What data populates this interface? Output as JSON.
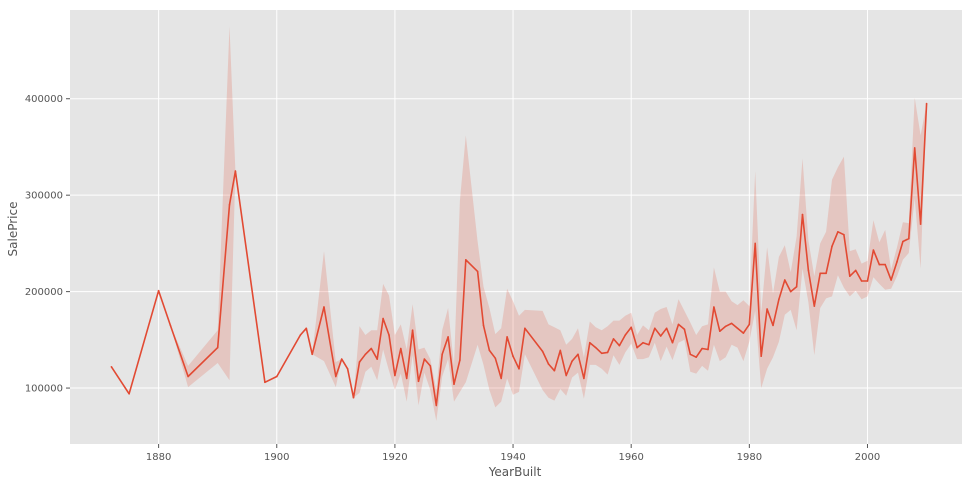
{
  "chart_data": {
    "type": "line",
    "title": "",
    "xlabel": "YearBuilt",
    "ylabel": "SalePrice",
    "xlim": [
      1865,
      2016
    ],
    "ylim": [
      42000,
      492000
    ],
    "xticks": [
      1880,
      1900,
      1920,
      1940,
      1960,
      1980,
      2000
    ],
    "yticks": [
      100000,
      200000,
      300000,
      400000
    ],
    "xtick_labels": [
      "1880",
      "1900",
      "1920",
      "1940",
      "1960",
      "1980",
      "2000"
    ],
    "ytick_labels": [
      "100000",
      "200000",
      "300000",
      "400000"
    ],
    "grid": true,
    "legend": "none",
    "colors": {
      "line": "#e24a33",
      "band": "#e24a33",
      "background": "#e5e5e5",
      "grid": "#ffffff"
    },
    "series": [
      {
        "x": [
          1872,
          1875,
          1880,
          1882,
          1885,
          1890,
          1892,
          1893,
          1898,
          1900,
          1904,
          1905,
          1906,
          1908,
          1910,
          1911,
          1912,
          1913,
          1914,
          1915,
          1916,
          1917,
          1918,
          1919,
          1920,
          1921,
          1922,
          1923,
          1924,
          1925,
          1926,
          1927,
          1928,
          1929,
          1930,
          1931,
          1932,
          1934,
          1935,
          1936,
          1937,
          1938,
          1939,
          1940,
          1941,
          1942,
          1945,
          1946,
          1947,
          1948,
          1949,
          1950,
          1951,
          1952,
          1953,
          1954,
          1955,
          1956,
          1957,
          1958,
          1959,
          1960,
          1961,
          1962,
          1963,
          1964,
          1965,
          1966,
          1967,
          1968,
          1969,
          1970,
          1971,
          1972,
          1973,
          1974,
          1975,
          1976,
          1977,
          1978,
          1979,
          1980,
          1981,
          1982,
          1983,
          1984,
          1985,
          1986,
          1987,
          1988,
          1989,
          1990,
          1991,
          1992,
          1993,
          1994,
          1995,
          1996,
          1997,
          1998,
          1999,
          2000,
          2001,
          2002,
          2003,
          2004,
          2005,
          2006,
          2007,
          2008,
          2009,
          2010
        ],
        "y": [
          122000,
          94000,
          201000,
          165000,
          112000,
          142000,
          290000,
          325000,
          106000,
          112000,
          155000,
          162000,
          135000,
          184000,
          112000,
          130000,
          120000,
          90000,
          127000,
          135000,
          141000,
          130000,
          172000,
          155000,
          113000,
          141000,
          110000,
          160000,
          107000,
          130000,
          123000,
          82000,
          135000,
          153000,
          104000,
          129000,
          233000,
          221000,
          165000,
          139000,
          131000,
          110000,
          153000,
          133000,
          120000,
          162000,
          138000,
          125000,
          118000,
          139000,
          113000,
          128000,
          135000,
          110000,
          147000,
          142000,
          136000,
          137000,
          151000,
          144000,
          155000,
          163000,
          142000,
          147000,
          145000,
          162000,
          154000,
          162000,
          147000,
          166000,
          161000,
          135000,
          132000,
          141000,
          140000,
          184000,
          159000,
          164000,
          167000,
          162000,
          157000,
          166000,
          250000,
          133000,
          182000,
          165000,
          192000,
          212000,
          200000,
          205000,
          280000,
          222000,
          185000,
          219000,
          219000,
          247000,
          262000,
          259000,
          216000,
          222000,
          211000,
          211000,
          243000,
          228000,
          228000,
          212000,
          231000,
          252000,
          255000,
          349000,
          270000,
          395000
        ],
        "band_upper": [
          122000,
          94000,
          201000,
          165000,
          123000,
          160000,
          475000,
          325000,
          106000,
          112000,
          155000,
          162000,
          135000,
          242000,
          127000,
          130000,
          120000,
          90000,
          164000,
          155000,
          160000,
          160000,
          208000,
          196000,
          155000,
          166000,
          140000,
          187000,
          140000,
          142000,
          130000,
          98000,
          160000,
          183000,
          123000,
          294000,
          362000,
          252000,
          205000,
          183000,
          156000,
          162000,
          203000,
          190000,
          175000,
          181000,
          180000,
          166000,
          163000,
          160000,
          145000,
          151000,
          162000,
          132000,
          169000,
          163000,
          160000,
          164000,
          170000,
          170000,
          175000,
          178000,
          155000,
          165000,
          160000,
          178000,
          182000,
          184000,
          166000,
          192000,
          180000,
          168000,
          155000,
          164000,
          166000,
          225000,
          200000,
          200000,
          190000,
          186000,
          191000,
          185000,
          325000,
          178000,
          246000,
          198000,
          236000,
          248000,
          220000,
          257000,
          338000,
          253000,
          216000,
          250000,
          262000,
          316000,
          329000,
          340000,
          242000,
          244000,
          229000,
          232000,
          274000,
          251000,
          264000,
          223000,
          246000,
          272000,
          271000,
          401000,
          362000,
          395000
        ],
        "band_lower": [
          122000,
          94000,
          201000,
          165000,
          101000,
          126000,
          108000,
          325000,
          106000,
          112000,
          155000,
          162000,
          135000,
          128000,
          101000,
          130000,
          120000,
          90000,
          95000,
          117000,
          122000,
          108000,
          140000,
          118000,
          98000,
          115000,
          86000,
          134000,
          82000,
          116000,
          98000,
          66000,
          112000,
          130000,
          86000,
          96000,
          106000,
          145000,
          124000,
          98000,
          80000,
          86000,
          110000,
          93000,
          96000,
          135000,
          98000,
          90000,
          87000,
          99000,
          92000,
          111000,
          116000,
          89000,
          124000,
          124000,
          120000,
          114000,
          134000,
          124000,
          137000,
          146000,
          130000,
          130000,
          132000,
          147000,
          128000,
          143000,
          129000,
          147000,
          150000,
          117000,
          115000,
          123000,
          118000,
          145000,
          128000,
          132000,
          145000,
          142000,
          128000,
          148000,
          180000,
          100000,
          120000,
          132000,
          148000,
          176000,
          181000,
          160000,
          224000,
          189000,
          134000,
          183000,
          193000,
          195000,
          217000,
          204000,
          195000,
          201000,
          192000,
          195000,
          215000,
          208000,
          202000,
          203000,
          216000,
          233000,
          240000,
          297000,
          224000,
          395000
        ]
      }
    ]
  }
}
